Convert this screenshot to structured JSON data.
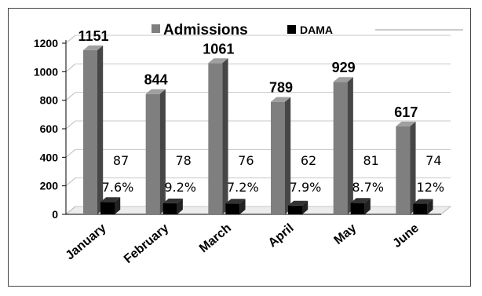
{
  "chart_data": {
    "type": "bar",
    "categories": [
      "January",
      "February",
      "March",
      "April",
      "May",
      "June"
    ],
    "series": [
      {
        "name": "Admissions",
        "values": [
          1151,
          844,
          1061,
          789,
          929,
          617
        ],
        "labels": [
          "1151",
          "844",
          "1061",
          "789",
          "929",
          "617"
        ],
        "color": "#7f7f7f"
      },
      {
        "name": "DAMA",
        "values": [
          87,
          78,
          76,
          62,
          81,
          74
        ],
        "labels": [
          "87",
          "78",
          "76",
          "62",
          "81",
          "74"
        ],
        "percent_labels": [
          "7.6%",
          "9.2%",
          "7.2%",
          "7.9%",
          "8.7%",
          "12%"
        ],
        "color": "#000000"
      }
    ],
    "yticks": [
      "0",
      "200",
      "400",
      "600",
      "800",
      "1000",
      "1200"
    ],
    "ylim": [
      0,
      1200
    ],
    "grid": true,
    "legend": "top",
    "three_d": true
  }
}
